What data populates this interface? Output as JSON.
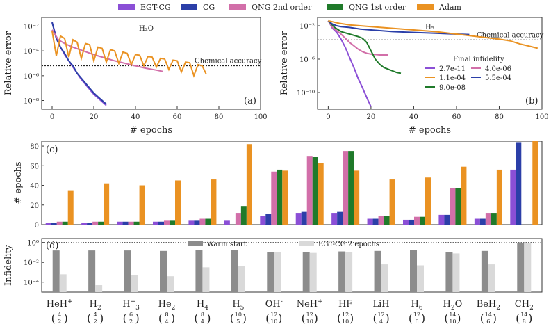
{
  "legend": {
    "placement": "top",
    "entries": [
      {
        "name": "EGT-CG",
        "color": "#8b4fd6"
      },
      {
        "name": "CG",
        "color": "#2b3fa8"
      },
      {
        "name": "QNG 2nd order",
        "color": "#d26fa9"
      },
      {
        "name": "QNG 1st order",
        "color": "#1f7a2a"
      },
      {
        "name": "Adam",
        "color": "#ea9222"
      }
    ]
  },
  "chart_data": [
    {
      "panel": "(a)",
      "type": "line",
      "annotation": "H₂O",
      "xlabel": "# epochs",
      "ylabel": "Relative error",
      "xlim": [
        -5,
        100
      ],
      "ylim_log10": [
        -8.7,
        -1.3
      ],
      "yscale": "log",
      "xticks": [
        0,
        20,
        40,
        60,
        80,
        100
      ],
      "yticks": [
        "10⁻²",
        "10⁻⁴",
        "10⁻⁶",
        "10⁻⁸"
      ],
      "reference_line": {
        "label": "Chemical accuracy",
        "y_log10": -5.2
      },
      "series": [
        {
          "name": "EGT-CG",
          "x": [
            0,
            2,
            4,
            6,
            8,
            10,
            12,
            14,
            16,
            18,
            20,
            22,
            24,
            26
          ],
          "log10_y": [
            -1.7,
            -2.9,
            -3.7,
            -4.3,
            -4.8,
            -5.3,
            -5.8,
            -6.3,
            -6.7,
            -7.1,
            -7.5,
            -7.8,
            -8.1,
            -8.4
          ]
        },
        {
          "name": "CG",
          "x": [
            0,
            2,
            4,
            6,
            8,
            10,
            12,
            14,
            16,
            18,
            20,
            22,
            24,
            26
          ],
          "log10_y": [
            -1.7,
            -3.0,
            -3.7,
            -4.2,
            -4.8,
            -5.2,
            -5.8,
            -6.2,
            -6.6,
            -7.0,
            -7.4,
            -7.7,
            -8.0,
            -8.3
          ]
        },
        {
          "name": "QNG 2nd order",
          "x": [
            0,
            3,
            6,
            10,
            15,
            20,
            25,
            30,
            35,
            40,
            45,
            50,
            53
          ],
          "log10_y": [
            -2.3,
            -3.1,
            -3.4,
            -3.7,
            -4.0,
            -4.3,
            -4.55,
            -4.8,
            -5.0,
            -5.2,
            -5.4,
            -5.55,
            -5.65
          ]
        },
        {
          "name": "Adam",
          "x": [
            0,
            2,
            4,
            6,
            8,
            10,
            12,
            14,
            16,
            18,
            20,
            22,
            24,
            26,
            28,
            30,
            32,
            34,
            36,
            38,
            40,
            42,
            44,
            46,
            48,
            50,
            52,
            54,
            56,
            58,
            60,
            62,
            64,
            66,
            68,
            70,
            72,
            74
          ],
          "log10_y": [
            -2.4,
            -4.4,
            -2.8,
            -3.0,
            -4.5,
            -3.1,
            -3.3,
            -4.6,
            -3.4,
            -3.5,
            -4.8,
            -3.7,
            -3.8,
            -4.9,
            -3.9,
            -4.0,
            -5.0,
            -4.1,
            -4.2,
            -5.1,
            -4.3,
            -4.35,
            -5.2,
            -4.45,
            -4.5,
            -5.3,
            -4.6,
            -4.65,
            -5.5,
            -4.75,
            -4.8,
            -5.7,
            -4.9,
            -4.95,
            -6.0,
            -5.1,
            -5.2,
            -5.9
          ]
        }
      ]
    },
    {
      "panel": "(b)",
      "type": "line",
      "annotation": "H₅",
      "xlabel": "# epochs",
      "ylabel": "Relative error",
      "xlim": [
        -5,
        100
      ],
      "ylim_log10": [
        -12,
        -1
      ],
      "yscale": "log",
      "xticks": [
        0,
        20,
        40,
        60,
        80,
        100
      ],
      "yticks": [
        "10⁻²",
        "10⁻⁶",
        "10⁻¹⁰"
      ],
      "reference_line": {
        "label": "Chemical accuracy",
        "y_log10": -3.7
      },
      "legend_title": "Final infidelity",
      "infidelity_labels": [
        {
          "series": "EGT-CG",
          "text": "2.7e-11"
        },
        {
          "series": "QNG 2nd order",
          "text": "4.0e-06"
        },
        {
          "series": "Adam",
          "text": "1.1e-04"
        },
        {
          "series": "CG",
          "text": "5.5e-04"
        },
        {
          "series": "QNG 1st order",
          "text": "9.0e-08"
        }
      ],
      "series": [
        {
          "name": "EGT-CG",
          "x": [
            0,
            2,
            4,
            6,
            8,
            10,
            12,
            14,
            16,
            18,
            20
          ],
          "log10_y": [
            -1.4,
            -2.3,
            -2.8,
            -3.6,
            -4.6,
            -5.8,
            -7.0,
            -8.3,
            -9.4,
            -10.6,
            -11.7
          ]
        },
        {
          "name": "QNG 2nd order",
          "x": [
            0,
            2,
            4,
            6,
            8,
            10,
            12,
            14,
            16,
            18,
            20,
            22,
            24,
            26,
            28
          ],
          "log10_y": [
            -1.4,
            -2.2,
            -2.6,
            -3.0,
            -3.5,
            -4.0,
            -4.4,
            -4.8,
            -5.1,
            -5.3,
            -5.4,
            -5.45,
            -5.5,
            -5.5,
            -5.5
          ]
        },
        {
          "name": "QNG 1st order",
          "x": [
            0,
            3,
            6,
            10,
            14,
            16,
            18,
            20,
            22,
            24,
            26,
            28,
            30,
            32,
            34
          ],
          "log10_y": [
            -1.4,
            -2.2,
            -2.7,
            -3.0,
            -3.3,
            -3.5,
            -4.0,
            -5.0,
            -6.0,
            -6.6,
            -7.0,
            -7.2,
            -7.4,
            -7.6,
            -7.7
          ]
        },
        {
          "name": "CG",
          "x": [
            0,
            2,
            4,
            6,
            10,
            15,
            20,
            30,
            40,
            50,
            60,
            66
          ],
          "log10_y": [
            -1.4,
            -1.8,
            -2.0,
            -2.1,
            -2.2,
            -2.4,
            -2.5,
            -2.7,
            -2.8,
            -2.9,
            -3.0,
            -3.05
          ]
        },
        {
          "name": "Adam",
          "x": [
            0,
            5,
            10,
            15,
            20,
            30,
            40,
            50,
            60,
            70,
            80,
            85,
            90,
            95,
            98
          ],
          "log10_y": [
            -1.4,
            -1.7,
            -1.9,
            -2.0,
            -2.1,
            -2.3,
            -2.5,
            -2.7,
            -3.0,
            -3.3,
            -3.6,
            -3.8,
            -4.2,
            -4.5,
            -4.7
          ]
        }
      ]
    },
    {
      "panel": "(c)",
      "type": "bar",
      "ylabel": "# epochs",
      "ylim": [
        0,
        85
      ],
      "yticks": [
        0,
        20,
        40,
        60,
        80
      ],
      "categories": [
        "HeH+",
        "H2",
        "H3+",
        "He2",
        "H4",
        "H5",
        "OH-",
        "NeH+",
        "HF",
        "LiH",
        "H6",
        "H2O",
        "BeH2",
        "CH2"
      ],
      "series": [
        {
          "name": "EGT-CG",
          "values": [
            2,
            2,
            3,
            3,
            4,
            4,
            9,
            12,
            12,
            6,
            5,
            10,
            6,
            56
          ]
        },
        {
          "name": "CG",
          "values": [
            2,
            2,
            3,
            3,
            4,
            0,
            11,
            13,
            13,
            6,
            5,
            10,
            6,
            84
          ]
        },
        {
          "name": "QNG 2nd order",
          "values": [
            3,
            3,
            3,
            4,
            6,
            12,
            54,
            70,
            75,
            9,
            8,
            37,
            12,
            0
          ]
        },
        {
          "name": "QNG 1st order",
          "values": [
            3,
            3,
            3,
            4,
            6,
            19,
            56,
            69,
            75,
            9,
            8,
            37,
            12,
            0
          ]
        },
        {
          "name": "Adam",
          "values": [
            35,
            42,
            40,
            45,
            46,
            82,
            55,
            63,
            55,
            46,
            48,
            59,
            56,
            85
          ]
        }
      ]
    },
    {
      "panel": "(d)",
      "type": "bar",
      "ylabel": "Infidelity",
      "yscale": "log",
      "ylim_log10": [
        -5,
        0.4
      ],
      "yticks": [
        "10⁰",
        "10⁻²",
        "10⁻⁴"
      ],
      "reference_line": {
        "y_log10": 0
      },
      "categories": [
        "HeH+",
        "H2",
        "H3+",
        "He2",
        "H4",
        "H5",
        "OH-",
        "NeH+",
        "HF",
        "LiH",
        "H6",
        "H2O",
        "BeH2",
        "CH2"
      ],
      "series": [
        {
          "name": "Warm start",
          "color": "#8c8c8c",
          "log10_values": [
            -0.8,
            -0.8,
            -0.8,
            -0.85,
            -0.75,
            -0.75,
            -0.95,
            -0.95,
            -0.9,
            -0.85,
            -0.75,
            -0.95,
            -0.85,
            -0.05
          ]
        },
        {
          "name": "EGT-CG 2 epochs",
          "color": "#d9d9d9",
          "log10_values": [
            -3.2,
            -4.3,
            -3.3,
            -3.4,
            -2.5,
            -2.4,
            -1.0,
            -1.05,
            -1.0,
            -2.2,
            -2.3,
            -1.1,
            -2.2,
            -0.05
          ]
        }
      ]
    }
  ],
  "molecules": [
    {
      "name": "HeH",
      "sup": "+",
      "sub": "",
      "top": "4",
      "bottom": "2"
    },
    {
      "name": "H",
      "sup": "",
      "sub": "2",
      "top": "4",
      "bottom": "2"
    },
    {
      "name": "H",
      "sup": "+",
      "sub": "3",
      "top": "6",
      "bottom": "2"
    },
    {
      "name": "He",
      "sup": "",
      "sub": "2",
      "top": "8",
      "bottom": "4"
    },
    {
      "name": "H",
      "sup": "",
      "sub": "4",
      "top": "8",
      "bottom": "4"
    },
    {
      "name": "H",
      "sup": "",
      "sub": "5",
      "top": "10",
      "bottom": "5"
    },
    {
      "name": "OH",
      "sup": "-",
      "sub": "",
      "top": "12",
      "bottom": "10"
    },
    {
      "name": "NeH",
      "sup": "+",
      "sub": "",
      "top": "12",
      "bottom": "10"
    },
    {
      "name": "HF",
      "sup": "",
      "sub": "",
      "top": "12",
      "bottom": "10"
    },
    {
      "name": "LiH",
      "sup": "",
      "sub": "",
      "top": "12",
      "bottom": "4"
    },
    {
      "name": "H",
      "sup": "",
      "sub": "6",
      "top": "12",
      "bottom": "6"
    },
    {
      "name": "H",
      "sup": "",
      "sub": "2",
      "suffix": "O",
      "top": "14",
      "bottom": "10"
    },
    {
      "name": "BeH",
      "sup": "",
      "sub": "2",
      "top": "14",
      "bottom": "6"
    },
    {
      "name": "CH",
      "sup": "",
      "sub": "2",
      "top": "14",
      "bottom": "8"
    }
  ]
}
